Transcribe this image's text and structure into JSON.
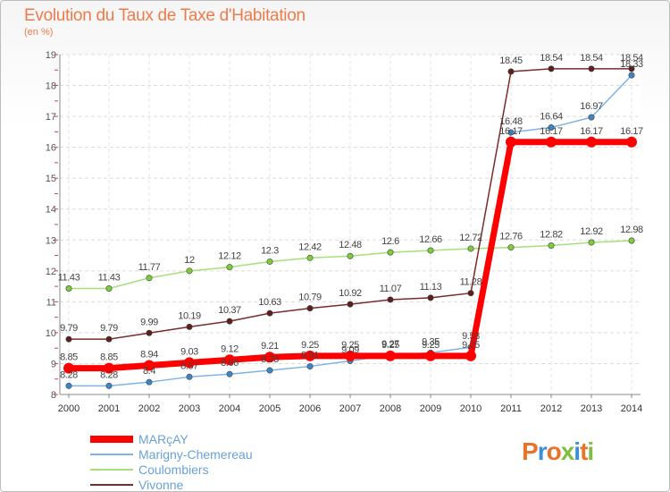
{
  "header": {
    "title": "Evolution du Taux de Taxe d'Habitation",
    "unit": "(en %)"
  },
  "brand": {
    "text": "Proxiti",
    "letter_colors": [
      "#e8742c",
      "#3d8fd6",
      "#e8742c",
      "#7fbf3f",
      "#3d8fd6",
      "#e8742c",
      "#7fbf3f"
    ]
  },
  "chart_data": {
    "type": "line",
    "title": "Evolution du Taux de Taxe d'Habitation",
    "ylabel": "(en %)",
    "xlabel": "",
    "x": [
      "2000",
      "2001",
      "2002",
      "2003",
      "2004",
      "2005",
      "2006",
      "2007",
      "2008",
      "2009",
      "2010",
      "2011",
      "2012",
      "2013",
      "2014"
    ],
    "ylim": [
      8,
      19
    ],
    "yticks": [
      "8",
      "9",
      "10",
      "11",
      "12",
      "13",
      "14",
      "15",
      "16",
      "17",
      "18",
      "19"
    ],
    "grid": true,
    "legend_position": "bottom-left",
    "series": [
      {
        "name": "MARçAY",
        "color": "#ff0000",
        "values": [
          8.85,
          8.85,
          8.94,
          9.03,
          9.12,
          9.21,
          9.25,
          9.25,
          9.25,
          9.25,
          9.25,
          16.17,
          16.17,
          16.17,
          16.17
        ],
        "labels": [
          "8.85",
          "8.85",
          "8.94",
          "9.03",
          "9.12",
          "9.21",
          "9.25",
          "9.25",
          "9.25",
          "9.25",
          "9.25",
          "16.17",
          "16.17",
          "16.17",
          "16.17"
        ]
      },
      {
        "name": "Marigny-Chemereau",
        "color": "#7fb3e6",
        "marker_color": "#3d86c6",
        "values": [
          8.28,
          8.28,
          8.4,
          8.57,
          8.66,
          8.78,
          8.91,
          9.09,
          9.27,
          9.35,
          9.53,
          16.48,
          16.64,
          16.97,
          18.33
        ],
        "labels": [
          "8.28",
          "8.28",
          "8.4",
          "8.57",
          "8.66",
          "8.78",
          "8.91",
          "9.09",
          "9.27",
          "9.35",
          "9.53",
          "16.48",
          "16.64",
          "16.97",
          "18.33"
        ]
      },
      {
        "name": "Coulombiers",
        "color": "#a6e07a",
        "marker_color": "#7ccd3a",
        "values": [
          11.43,
          11.43,
          11.77,
          12,
          12.12,
          12.3,
          12.42,
          12.48,
          12.6,
          12.66,
          12.72,
          12.76,
          12.82,
          12.92,
          12.98
        ],
        "labels": [
          "11.43",
          "11.43",
          "11.77",
          "12",
          "12.12",
          "12.3",
          "12.42",
          "12.48",
          "12.6",
          "12.66",
          "12.72",
          "12.76",
          "12.82",
          "12.92",
          "12.98"
        ]
      },
      {
        "name": "Vivonne",
        "color": "#7a2b2b",
        "marker_color": "#5e1e1e",
        "values": [
          9.79,
          9.79,
          9.99,
          10.19,
          10.37,
          10.63,
          10.79,
          10.92,
          11.07,
          11.13,
          11.28,
          18.45,
          18.54,
          18.54,
          18.54
        ],
        "labels": [
          "9.79",
          "9.79",
          "9.99",
          "10.19",
          "10.37",
          "10.63",
          "10.79",
          "10.92",
          "11.07",
          "11.13",
          "11.28",
          "18.45",
          "18.54",
          "18.54",
          "18.54"
        ]
      }
    ]
  }
}
